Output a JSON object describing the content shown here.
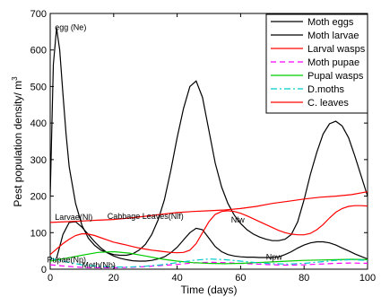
{
  "chart_data": {
    "type": "line",
    "xlabel": "Time (days)",
    "ylabel": "Pest population density/ m",
    "ylabel_superscript": "3",
    "xlim": [
      0,
      100
    ],
    "ylim": [
      0,
      700
    ],
    "xticks": [
      0,
      20,
      40,
      60,
      80,
      100
    ],
    "yticks": [
      0,
      100,
      200,
      300,
      400,
      500,
      600,
      700
    ],
    "grid": false,
    "legend_position": "top-right",
    "series": [
      {
        "name": "Moth eggs",
        "color": "#000000",
        "dash": "solid",
        "x": [
          0,
          1,
          2,
          3,
          4,
          5,
          6,
          8,
          10,
          12,
          14,
          16,
          18,
          20,
          22,
          24,
          26,
          28,
          30,
          32,
          34,
          36,
          38,
          40,
          42,
          44,
          46,
          48,
          50,
          52,
          54,
          56,
          58,
          60,
          62,
          64,
          66,
          68,
          70,
          72,
          74,
          76,
          78,
          80,
          82,
          84,
          86,
          88,
          90,
          92,
          94,
          96,
          98,
          100
        ],
        "y": [
          200,
          560,
          660,
          600,
          480,
          370,
          280,
          180,
          120,
          85,
          65,
          52,
          45,
          40,
          38,
          38,
          42,
          52,
          68,
          95,
          135,
          190,
          270,
          360,
          440,
          500,
          515,
          470,
          380,
          290,
          225,
          180,
          148,
          125,
          108,
          96,
          88,
          82,
          78,
          78,
          82,
          95,
          130,
          190,
          260,
          320,
          370,
          398,
          405,
          392,
          360,
          310,
          255,
          200
        ]
      },
      {
        "name": "Moth larvae",
        "color": "#000000",
        "dash": "solid",
        "x": [
          2,
          4,
          6,
          8,
          10,
          12,
          14,
          16,
          18,
          20,
          22,
          24,
          26,
          28,
          30,
          32,
          34,
          36,
          38,
          40,
          42,
          44,
          46,
          48,
          50,
          52,
          54,
          56,
          58,
          60,
          62,
          64,
          66,
          68,
          70,
          72,
          74,
          76,
          78,
          80,
          82,
          84,
          86,
          88,
          90,
          92,
          94,
          96,
          98,
          100
        ],
        "y": [
          30,
          95,
          128,
          130,
          115,
          95,
          75,
          58,
          45,
          36,
          30,
          26,
          23,
          22,
          22,
          24,
          28,
          34,
          45,
          60,
          80,
          100,
          112,
          108,
          85,
          62,
          48,
          40,
          36,
          34,
          33,
          33,
          32,
          32,
          32,
          34,
          40,
          48,
          58,
          66,
          72,
          75,
          75,
          72,
          66,
          58,
          50,
          42,
          35,
          28
        ]
      },
      {
        "name": "Larval wasps",
        "color": "#ff0000",
        "dash": "solid",
        "x": [
          0,
          2,
          4,
          6,
          8,
          10,
          12,
          14,
          16,
          18,
          20,
          22,
          24,
          26,
          28,
          30,
          32,
          34,
          36,
          38,
          40,
          42,
          44,
          46,
          48,
          50,
          52,
          54,
          56,
          58,
          60,
          62,
          64,
          66,
          68,
          70,
          72,
          74,
          76,
          78,
          80,
          82,
          84,
          86,
          88,
          90,
          92,
          94,
          96,
          98,
          100
        ],
        "y": [
          40,
          55,
          70,
          82,
          92,
          97,
          96,
          92,
          86,
          80,
          74,
          70,
          66,
          62,
          58,
          55,
          52,
          50,
          48,
          46,
          45,
          46,
          52,
          70,
          100,
          130,
          150,
          158,
          160,
          158,
          153,
          146,
          138,
          130,
          122,
          114,
          106,
          100,
          96,
          94,
          94,
          98,
          108,
          122,
          140,
          156,
          166,
          172,
          174,
          174,
          173
        ]
      },
      {
        "name": "Moth pupae",
        "color": "#ff00ff",
        "dash": "dashed",
        "x": [
          0,
          5,
          10,
          15,
          20,
          25,
          30,
          35,
          40,
          45,
          50,
          55,
          60,
          65,
          70,
          75,
          80,
          85,
          90,
          95,
          100
        ],
        "y": [
          12,
          8,
          5,
          4,
          4,
          5,
          7,
          10,
          13,
          17,
          19,
          18,
          16,
          14,
          12,
          11,
          12,
          14,
          16,
          17,
          16
        ]
      },
      {
        "name": "Pupal wasps",
        "color": "#00cc00",
        "dash": "solid",
        "x": [
          0,
          5,
          10,
          15,
          20,
          25,
          30,
          35,
          40,
          45,
          50,
          55,
          60,
          65,
          70,
          75,
          80,
          85,
          90,
          95,
          100
        ],
        "y": [
          22,
          30,
          38,
          46,
          48,
          44,
          36,
          28,
          22,
          18,
          16,
          15,
          16,
          18,
          20,
          22,
          24,
          25,
          26,
          27,
          26
        ]
      },
      {
        "name": "D.moths",
        "color": "#00cccc",
        "dash": "dashdot",
        "x": [
          0,
          5,
          10,
          15,
          20,
          25,
          30,
          35,
          40,
          45,
          50,
          55,
          60,
          65,
          70,
          75,
          80,
          85,
          90,
          95,
          100
        ],
        "y": [
          30,
          20,
          12,
          8,
          6,
          6,
          8,
          12,
          18,
          24,
          28,
          26,
          22,
          18,
          15,
          14,
          16,
          20,
          24,
          26,
          24
        ]
      },
      {
        "name": "C. leaves",
        "color": "#ff0000",
        "dash": "solid",
        "x": [
          0,
          5,
          10,
          15,
          20,
          25,
          30,
          35,
          40,
          45,
          50,
          55,
          60,
          65,
          70,
          75,
          80,
          85,
          90,
          95,
          100
        ],
        "y": [
          128,
          130,
          132,
          134,
          136,
          140,
          145,
          150,
          155,
          158,
          160,
          162,
          166,
          172,
          180,
          186,
          192,
          197,
          200,
          204,
          212
        ]
      }
    ],
    "annotations": [
      {
        "text": "egg (Ne)",
        "x": 1.5,
        "y": 655
      },
      {
        "text": "Larvae(Nl)",
        "x": 1.5,
        "y": 135
      },
      {
        "text": "Cabbage Leaves(Nlf)",
        "x": 18,
        "y": 138
      },
      {
        "text": "Nlw",
        "x": 57,
        "y": 128
      },
      {
        "text": "Pupae(Np)",
        "x": -1,
        "y": 18
      },
      {
        "text": "Moth(Nb)",
        "x": 10,
        "y": 4
      },
      {
        "text": "Npw",
        "x": 68,
        "y": 26
      }
    ]
  }
}
